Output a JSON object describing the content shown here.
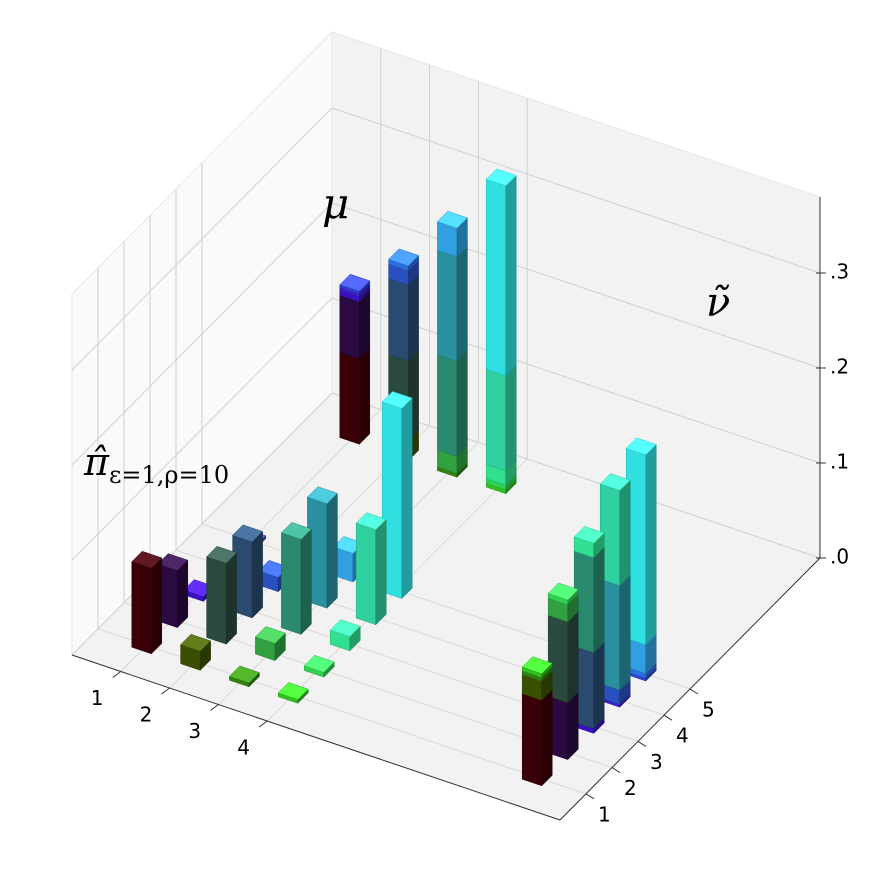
{
  "chart_data": {
    "type": "bar3d",
    "coupling_label": "π̂",
    "coupling_subscript": "ε=1,ρ=10",
    "xlabel": "μ",
    "ylabel": "ν̃",
    "xcategories": [
      "1",
      "2",
      "3",
      "4"
    ],
    "ycategories": [
      "1",
      "2",
      "3",
      "4",
      "5"
    ],
    "values": [
      [
        0.09,
        0.06,
        0.005,
        0.003,
        0.003
      ],
      [
        0.02,
        0.085,
        0.08,
        0.015,
        0.005
      ],
      [
        0.004,
        0.018,
        0.1,
        0.11,
        0.03
      ],
      [
        0.004,
        0.005,
        0.015,
        0.1,
        0.2
      ]
    ],
    "colors": [
      [
        "#3a0008",
        "#2a0a40",
        "#3a10c0",
        "#3a20c8",
        "#3040d0"
      ],
      [
        "#3a5000",
        "#2a4a40",
        "#2a4a70",
        "#2a50c0",
        "#2a70e0"
      ],
      [
        "#308010",
        "#30a040",
        "#2a8a70",
        "#2a90a0",
        "#30a0e0"
      ],
      [
        "#30c020",
        "#30d050",
        "#30e090",
        "#30d0a0",
        "#30e0e0"
      ]
    ],
    "zlim": [
      0,
      0.38
    ],
    "zticks": [
      {
        "value": 0,
        "label": ".0"
      },
      {
        "value": 0.1,
        "label": ".1"
      },
      {
        "value": 0.2,
        "label": ".2"
      },
      {
        "value": 0.3,
        "label": ".3"
      }
    ],
    "grid": true
  }
}
